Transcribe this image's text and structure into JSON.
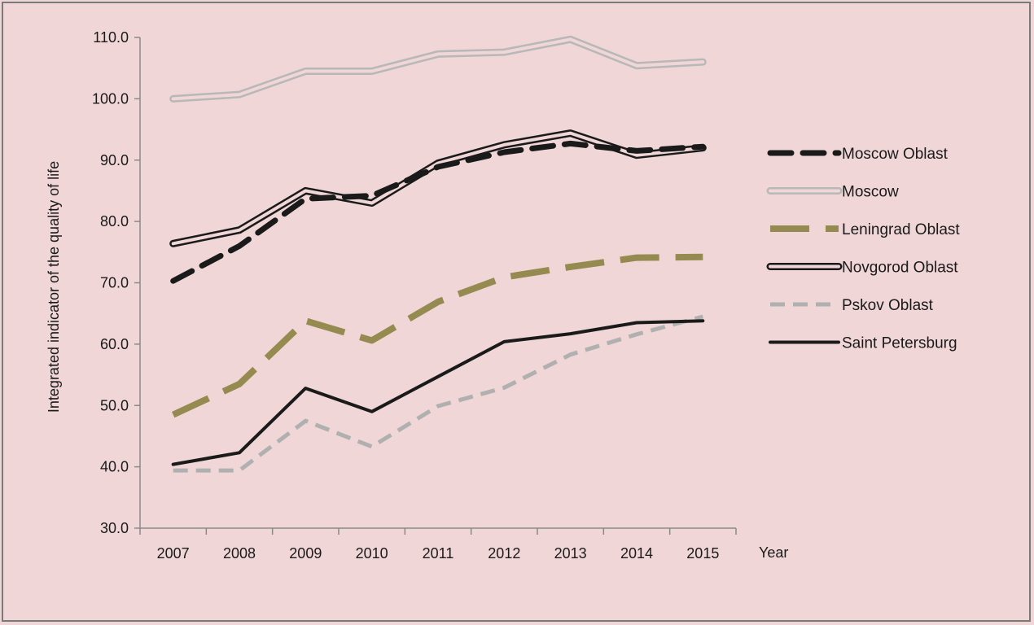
{
  "chart_data": {
    "type": "line",
    "title": "",
    "xlabel": "Year",
    "ylabel": "Integrated indicator of the quality of life",
    "x": [
      "2007",
      "2008",
      "2009",
      "2010",
      "2011",
      "2012",
      "2013",
      "2014",
      "2015"
    ],
    "ylim": [
      30,
      110
    ],
    "yticks": [
      "30.0",
      "40.0",
      "50.0",
      "60.0",
      "70.0",
      "80.0",
      "90.0",
      "100.0",
      "110.0"
    ],
    "grid": false,
    "legend_position": "right",
    "series": [
      {
        "name": "Moscow Oblast",
        "values": [
          70.3,
          76.0,
          83.7,
          84.2,
          88.9,
          91.3,
          92.7,
          91.5,
          92.2
        ],
        "color": "#1a1a1a",
        "style": "dashed-thick"
      },
      {
        "name": "Moscow",
        "values": [
          100.0,
          100.7,
          104.5,
          104.5,
          107.3,
          107.6,
          109.7,
          105.4,
          106.0
        ],
        "color": "#b8b8b8",
        "style": "double"
      },
      {
        "name": "Leningrad Oblast",
        "values": [
          48.5,
          53.5,
          63.8,
          60.6,
          66.9,
          70.9,
          72.6,
          74.1,
          74.2
        ],
        "color": "#958a4f",
        "style": "dashed-long"
      },
      {
        "name": "Novgorod Oblast",
        "values": [
          76.4,
          78.6,
          85.0,
          83.0,
          89.5,
          92.5,
          94.4,
          90.8,
          92.0
        ],
        "color": "#1a1a1a",
        "style": "double"
      },
      {
        "name": "Pskov Oblast",
        "values": [
          39.4,
          39.4,
          47.5,
          43.3,
          49.9,
          52.9,
          58.3,
          61.6,
          64.5
        ],
        "color": "#b0b0b0",
        "style": "dashed"
      },
      {
        "name": "Saint Petersburg",
        "values": [
          40.4,
          42.3,
          52.8,
          49.0,
          54.7,
          60.4,
          61.7,
          63.5,
          63.8
        ],
        "color": "#1a1a1a",
        "style": "solid"
      }
    ]
  }
}
